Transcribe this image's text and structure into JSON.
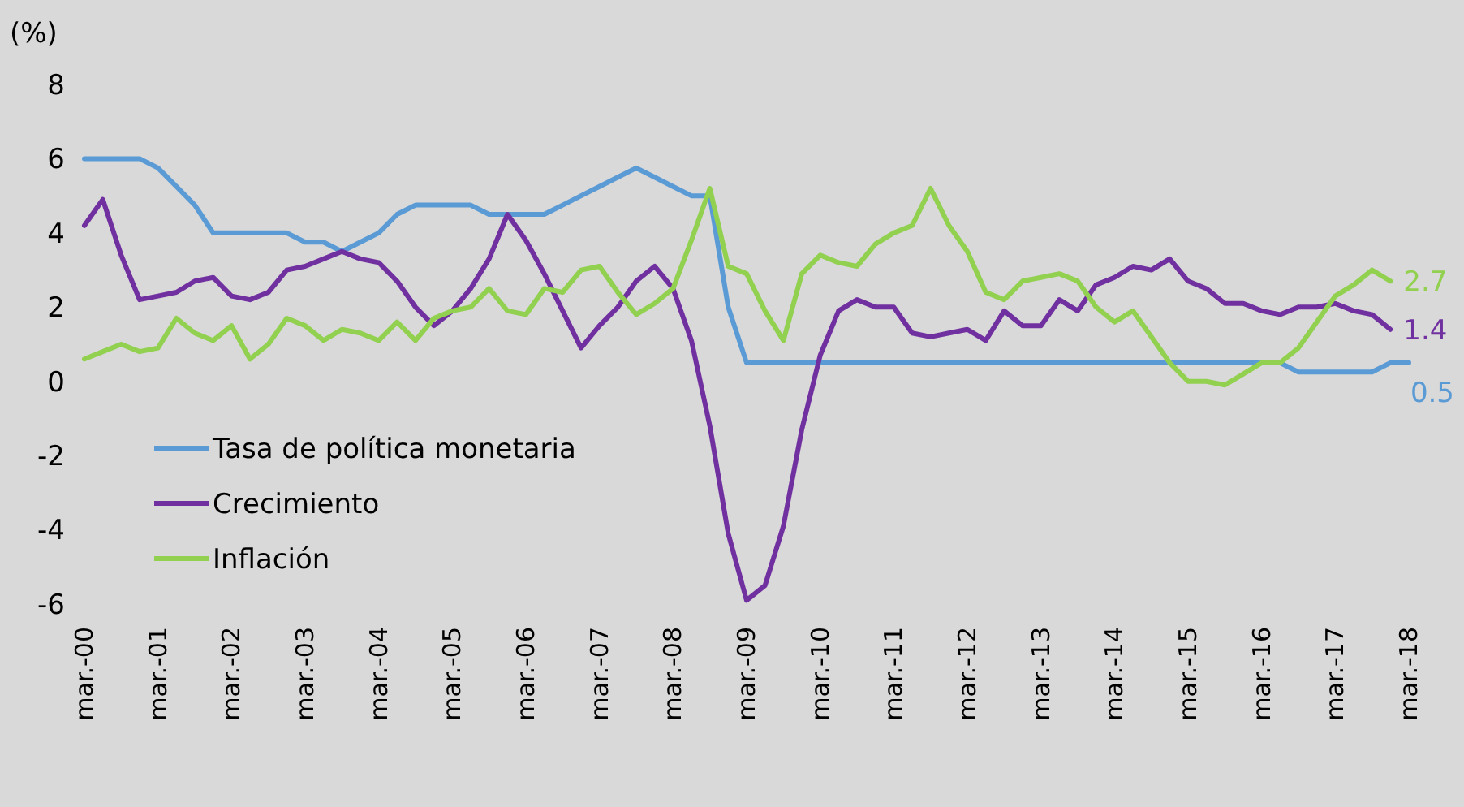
{
  "chart_data": {
    "type": "line",
    "ylabel": "(%)",
    "categories": [
      "mar.-00",
      null,
      null,
      null,
      "mar.-01",
      null,
      null,
      null,
      "mar.-02",
      null,
      null,
      null,
      "mar.-03",
      null,
      null,
      null,
      "mar.-04",
      null,
      null,
      null,
      "mar.-05",
      null,
      null,
      null,
      "mar.-06",
      null,
      null,
      null,
      "mar.-07",
      null,
      null,
      null,
      "mar.-08",
      null,
      null,
      null,
      "mar.-09",
      null,
      null,
      null,
      "mar.-10",
      null,
      null,
      null,
      "mar.-11",
      null,
      null,
      null,
      "mar.-12",
      null,
      null,
      null,
      "mar.-13",
      null,
      null,
      null,
      "mar.-14",
      null,
      null,
      null,
      "mar.-15",
      null,
      null,
      null,
      "mar.-16",
      null,
      null,
      null,
      "mar.-17",
      null,
      null,
      null,
      "mar.-18"
    ],
    "ylim": [
      -6,
      8
    ],
    "yticks": [
      -6,
      -4,
      -2,
      0,
      2,
      4,
      6,
      8
    ],
    "grid": false,
    "legend": "bottom left",
    "marker": "none",
    "line_style": "solid",
    "series": [
      {
        "name": "Tasa de política monetaria",
        "color": "#5b9bd5",
        "values": [
          6,
          6,
          6,
          6,
          5.75,
          5.25,
          4.75,
          4,
          4,
          4,
          4,
          4,
          3.75,
          3.75,
          3.5,
          3.75,
          4,
          4.5,
          4.75,
          4.75,
          4.75,
          4.75,
          4.5,
          4.5,
          4.5,
          4.5,
          4.75,
          5,
          5.25,
          5.5,
          5.75,
          5.5,
          5.25,
          5,
          5,
          2,
          0.5,
          0.5,
          0.5,
          0.5,
          0.5,
          0.5,
          0.5,
          0.5,
          0.5,
          0.5,
          0.5,
          0.5,
          0.5,
          0.5,
          0.5,
          0.5,
          0.5,
          0.5,
          0.5,
          0.5,
          0.5,
          0.5,
          0.5,
          0.5,
          0.5,
          0.5,
          0.5,
          0.5,
          0.5,
          0.5,
          0.25,
          0.25,
          0.25,
          0.25,
          0.25,
          0.5,
          0.5
        ],
        "value_labels": [
          null,
          null,
          null,
          null,
          null,
          null,
          null,
          null,
          null,
          null,
          null,
          null,
          null,
          null,
          null,
          null,
          null,
          null,
          null,
          null,
          null,
          null,
          null,
          null,
          null,
          null,
          null,
          null,
          null,
          null,
          null,
          null,
          null,
          null,
          null,
          null,
          null,
          null,
          null,
          null,
          null,
          null,
          null,
          null,
          null,
          null,
          null,
          null,
          null,
          null,
          null,
          null,
          null,
          null,
          null,
          null,
          null,
          null,
          null,
          null,
          null,
          null,
          null,
          null,
          null,
          null,
          null,
          null,
          null,
          null,
          null,
          null,
          "0.5"
        ]
      },
      {
        "name": "Crecimiento",
        "color": "#7030a0",
        "values": [
          4.2,
          4.9,
          3.4,
          2.2,
          2.3,
          2.4,
          2.7,
          2.8,
          2.3,
          2.2,
          2.4,
          3.0,
          3.1,
          3.3,
          3.5,
          3.3,
          3.2,
          2.7,
          2.0,
          1.5,
          1.9,
          2.5,
          3.3,
          4.5,
          3.8,
          2.9,
          1.9,
          0.9,
          1.5,
          2.0,
          2.7,
          3.1,
          2.5,
          1.1,
          -1.2,
          -4.1,
          -5.9,
          -5.5,
          -3.9,
          -1.3,
          0.7,
          1.9,
          2.2,
          2.0,
          2.0,
          1.3,
          1.2,
          1.3,
          1.4,
          1.1,
          1.9,
          1.5,
          1.5,
          2.2,
          1.9,
          2.6,
          2.8,
          3.1,
          3.0,
          3.3,
          2.7,
          2.5,
          2.1,
          2.1,
          1.9,
          1.8,
          2.0,
          2.0,
          2.1,
          1.9,
          1.8,
          1.4,
          null
        ],
        "value_labels": [
          null,
          null,
          null,
          null,
          null,
          null,
          null,
          null,
          null,
          null,
          null,
          null,
          null,
          null,
          null,
          null,
          null,
          null,
          null,
          null,
          null,
          null,
          null,
          null,
          null,
          null,
          null,
          null,
          null,
          null,
          null,
          null,
          null,
          null,
          null,
          null,
          null,
          null,
          null,
          null,
          null,
          null,
          null,
          null,
          null,
          null,
          null,
          null,
          null,
          null,
          null,
          null,
          null,
          null,
          null,
          null,
          null,
          null,
          null,
          null,
          null,
          null,
          null,
          null,
          null,
          null,
          null,
          null,
          null,
          null,
          null,
          "1.4",
          null
        ]
      },
      {
        "name": "Inflación",
        "color": "#92d050",
        "values": [
          0.6,
          0.8,
          1.0,
          0.8,
          0.9,
          1.7,
          1.3,
          1.1,
          1.5,
          0.6,
          1.0,
          1.7,
          1.5,
          1.1,
          1.4,
          1.3,
          1.1,
          1.6,
          1.1,
          1.7,
          1.9,
          2.0,
          2.5,
          1.9,
          1.8,
          2.5,
          2.4,
          3.0,
          3.1,
          2.4,
          1.8,
          2.1,
          2.5,
          3.8,
          5.2,
          3.1,
          2.9,
          1.9,
          1.1,
          2.9,
          3.4,
          3.2,
          3.1,
          3.7,
          4.0,
          4.2,
          5.2,
          4.2,
          3.5,
          2.4,
          2.2,
          2.7,
          2.8,
          2.9,
          2.7,
          2.0,
          1.6,
          1.9,
          1.2,
          0.5,
          0.0,
          0.0,
          -0.1,
          0.2,
          0.5,
          0.5,
          0.9,
          1.6,
          2.3,
          2.6,
          3.0,
          2.7,
          null
        ],
        "value_labels": [
          null,
          null,
          null,
          null,
          null,
          null,
          null,
          null,
          null,
          null,
          null,
          null,
          null,
          null,
          null,
          null,
          null,
          null,
          null,
          null,
          null,
          null,
          null,
          null,
          null,
          null,
          null,
          null,
          null,
          null,
          null,
          null,
          null,
          null,
          null,
          null,
          null,
          null,
          null,
          null,
          null,
          null,
          null,
          null,
          null,
          null,
          null,
          null,
          null,
          null,
          null,
          null,
          null,
          null,
          null,
          null,
          null,
          null,
          null,
          null,
          null,
          null,
          null,
          null,
          null,
          null,
          null,
          null,
          null,
          null,
          null,
          "2.7",
          null
        ]
      }
    ]
  }
}
